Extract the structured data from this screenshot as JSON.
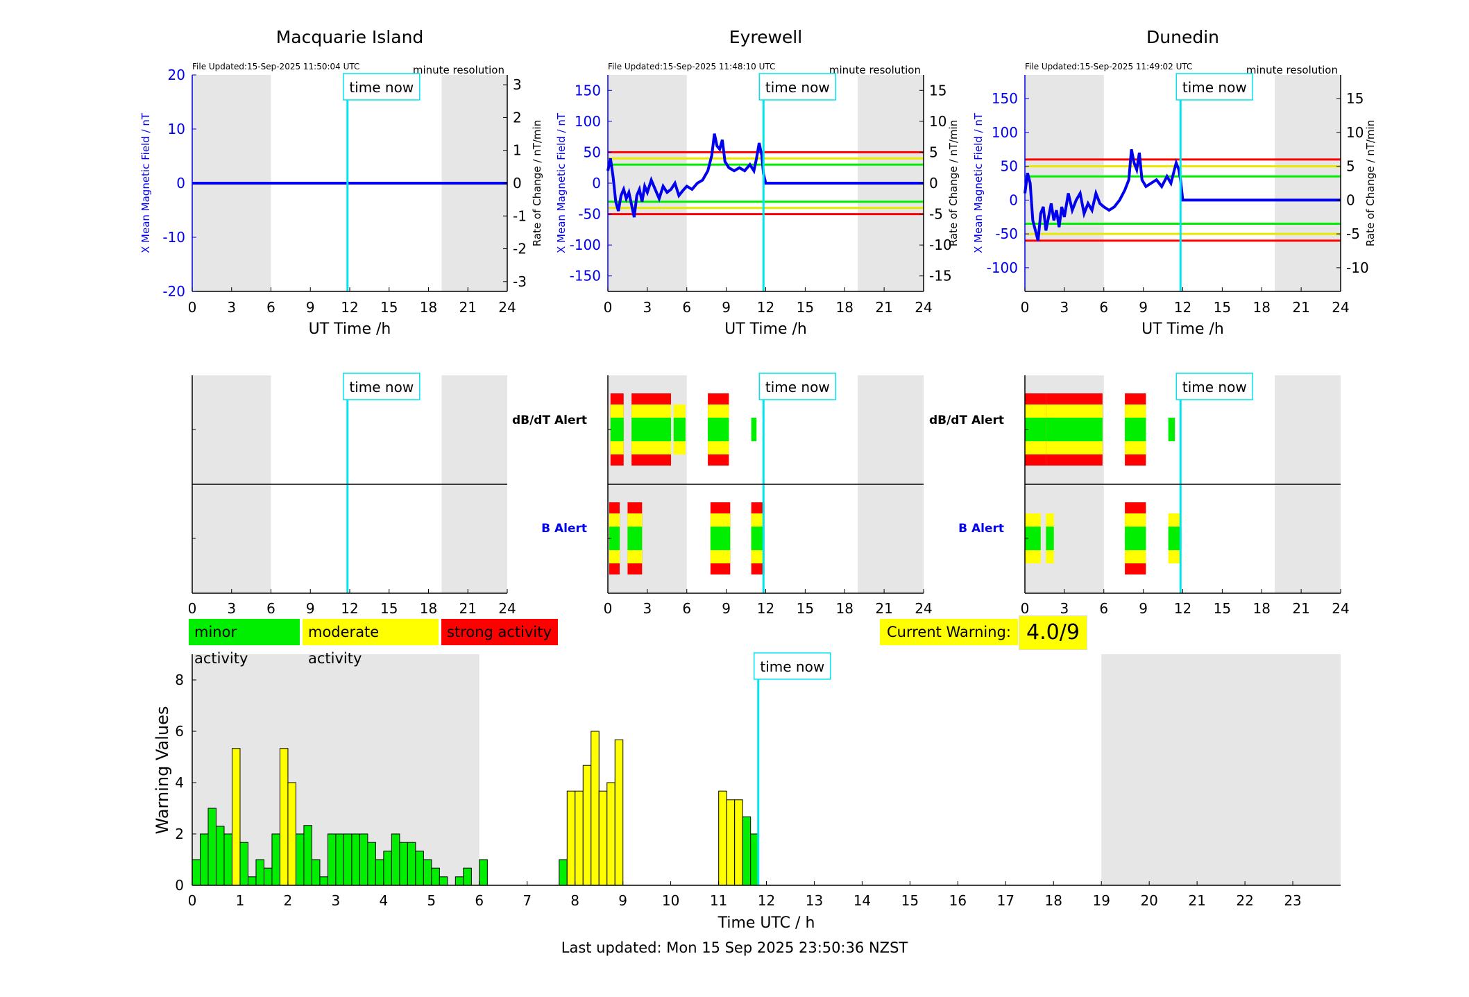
{
  "stations": [
    {
      "title": "Macquarie Island",
      "file_updated": "File Updated:15-Sep-2025 11:50:04 UTC",
      "resolution": "minute resolution",
      "ylabel_left": "X Mean Magnetic Field / nT",
      "ylabel_right": "Rate of Change / nT/min",
      "left_ticks": [
        20,
        10,
        0,
        -10,
        -20
      ],
      "right_ticks": [
        3,
        2,
        1,
        0,
        -1,
        -2,
        -3
      ]
    },
    {
      "title": "Eyrewell",
      "file_updated": "File Updated:15-Sep-2025 11:48:10 UTC",
      "resolution": "minute resolution",
      "ylabel_left": "X Mean Magnetic Field / nT",
      "ylabel_right": "Rate of Change / nT/min",
      "left_ticks": [
        150,
        100,
        50,
        0,
        -50,
        -100,
        -150
      ],
      "right_ticks": [
        15,
        10,
        5,
        0,
        -5,
        -10,
        -15
      ]
    },
    {
      "title": "Dunedin",
      "file_updated": "File Updated:15-Sep-2025 11:49:02 UTC",
      "resolution": "minute resolution",
      "ylabel_left": "X Mean Magnetic Field / nT",
      "ylabel_right": "Rate of Change / nT/min",
      "left_ticks": [
        150,
        100,
        50,
        0,
        -50,
        -100
      ],
      "right_ticks": [
        15,
        10,
        5,
        0,
        -5,
        -10
      ]
    }
  ],
  "time_axis_ticks": [
    "0",
    "3",
    "6",
    "9",
    "12",
    "15",
    "18",
    "21",
    "24"
  ],
  "time_axis_label": "UT Time /h",
  "time_now_label": "time now",
  "alert_labels": {
    "dbdt": "dB/dT Alert",
    "b": "B Alert"
  },
  "legend": {
    "minor": "minor activity",
    "moderate": "moderate activity",
    "strong": "strong activity"
  },
  "current_warning": {
    "label": "Current Warning:",
    "value": "4.0/9"
  },
  "footer": "Last updated: Mon 15 Sep 2025 23:50:36 NZST",
  "colors": {
    "minor": "#00ee00",
    "moderate": "#ffff00",
    "strong": "#ff0000",
    "time_now": "#00e5ee",
    "shade": "#e6e6e6",
    "field": "#0000ee"
  },
  "chart_data": [
    {
      "type": "line",
      "title": "Macquarie Island",
      "xlabel": "UT Time /h",
      "ylabel": "X Mean Magnetic Field / nT",
      "ylabel_right": "Rate of Change / nT/min",
      "xlim": [
        0,
        24
      ],
      "ylim": [
        -20,
        20
      ],
      "ylim_right": [
        -3.3,
        3.3
      ],
      "shaded_hours": [
        [
          0,
          6
        ],
        [
          19,
          24
        ]
      ],
      "time_now": 11.83,
      "series": [
        {
          "x": [
            0,
            24
          ],
          "y": [
            0,
            0
          ]
        }
      ]
    },
    {
      "type": "line",
      "title": "Eyrewell",
      "xlabel": "UT Time /h",
      "ylabel": "X Mean Magnetic Field / nT",
      "ylabel_right": "Rate of Change / nT/min",
      "xlim": [
        0,
        24
      ],
      "ylim": [
        -175,
        175
      ],
      "ylim_right": [
        -17.5,
        17.5
      ],
      "shaded_hours": [
        [
          0,
          6
        ],
        [
          19,
          24
        ]
      ],
      "time_now": 11.83,
      "thresholds": {
        "red": 50,
        "yellow": 40,
        "green": 30,
        "green_low": -30,
        "yellow_low": -40,
        "red_low": -50
      },
      "series": [
        {
          "x": [
            0,
            0.2,
            0.4,
            0.6,
            0.8,
            1.0,
            1.2,
            1.4,
            1.6,
            1.8,
            2.0,
            2.2,
            2.4,
            2.6,
            2.8,
            3.0,
            3.3,
            3.6,
            3.9,
            4.2,
            4.5,
            4.8,
            5.1,
            5.4,
            5.7,
            6.0,
            6.4,
            6.8,
            7.2,
            7.6,
            7.9,
            8.1,
            8.3,
            8.5,
            8.7,
            8.9,
            9.2,
            9.6,
            10.0,
            10.4,
            10.8,
            11.1,
            11.3,
            11.5,
            11.7,
            11.83,
            12.0,
            24
          ],
          "y": [
            20,
            40,
            10,
            -30,
            -45,
            -20,
            -10,
            -25,
            -15,
            -35,
            -55,
            -20,
            -10,
            -30,
            -5,
            -15,
            5,
            -10,
            -25,
            -5,
            -15,
            -10,
            0,
            -20,
            -12,
            -5,
            -10,
            0,
            5,
            20,
            45,
            80,
            60,
            55,
            70,
            35,
            25,
            20,
            25,
            20,
            30,
            20,
            40,
            65,
            45,
            15,
            0,
            0
          ]
        }
      ]
    },
    {
      "type": "line",
      "title": "Dunedin",
      "xlabel": "UT Time /h",
      "ylabel": "X Mean Magnetic Field / nT",
      "ylabel_right": "Rate of Change / nT/min",
      "xlim": [
        0,
        24
      ],
      "ylim": [
        -135,
        185
      ],
      "ylim_right": [
        -13.5,
        18.5
      ],
      "shaded_hours": [
        [
          0,
          6
        ],
        [
          19,
          24
        ]
      ],
      "time_now": 11.83,
      "thresholds": {
        "red": 60,
        "yellow": 50,
        "green": 35,
        "green_low": -35,
        "yellow_low": -50,
        "red_low": -60
      },
      "series": [
        {
          "x": [
            0,
            0.2,
            0.4,
            0.6,
            0.8,
            1.0,
            1.2,
            1.4,
            1.6,
            1.8,
            2.0,
            2.2,
            2.4,
            2.6,
            2.8,
            3.0,
            3.3,
            3.6,
            3.9,
            4.2,
            4.5,
            4.8,
            5.1,
            5.4,
            5.7,
            6.0,
            6.4,
            6.8,
            7.2,
            7.6,
            7.9,
            8.1,
            8.3,
            8.5,
            8.7,
            8.9,
            9.2,
            9.6,
            10.0,
            10.4,
            10.8,
            11.1,
            11.3,
            11.5,
            11.7,
            11.83,
            12.0,
            24
          ],
          "y": [
            10,
            40,
            25,
            -30,
            -45,
            -60,
            -20,
            -10,
            -45,
            -25,
            -5,
            -30,
            -15,
            -40,
            -10,
            -25,
            10,
            -15,
            0,
            10,
            -20,
            -5,
            -15,
            10,
            -5,
            -10,
            -15,
            -10,
            0,
            15,
            30,
            75,
            55,
            45,
            70,
            30,
            20,
            25,
            30,
            20,
            35,
            25,
            40,
            55,
            45,
            30,
            0,
            0
          ]
        }
      ]
    },
    {
      "type": "bar",
      "title": "Current Warning",
      "xlabel": "Time UTC / h",
      "ylabel": "Warning Values",
      "xlim": [
        0,
        24
      ],
      "ylim": [
        0,
        9
      ],
      "shaded_hours": [
        [
          0,
          6
        ],
        [
          19,
          24
        ]
      ],
      "time_now": 11.83,
      "x_ticks": [
        "0",
        "1",
        "2",
        "3",
        "4",
        "5",
        "6",
        "7",
        "8",
        "9",
        "10",
        "11",
        "12",
        "13",
        "14",
        "15",
        "16",
        "17",
        "18",
        "19",
        "20",
        "21",
        "22",
        "23"
      ],
      "y_ticks": [
        "0",
        "2",
        "4",
        "6",
        "8"
      ],
      "bin_width_h": 0.1667,
      "values": [
        1.0,
        2.0,
        3.0,
        2.3,
        2.0,
        5.33,
        1.67,
        0.33,
        1.0,
        0.67,
        2.0,
        5.33,
        4.0,
        2.0,
        2.33,
        1.0,
        0.33,
        2.0,
        2.0,
        2.0,
        2.0,
        2.0,
        1.67,
        1.0,
        1.33,
        2.0,
        1.67,
        1.67,
        1.33,
        1.0,
        0.67,
        0.33,
        0,
        0.33,
        0.67,
        0,
        1.0,
        0,
        0,
        0,
        0,
        0,
        0,
        0,
        0,
        0,
        1.0,
        3.67,
        3.67,
        4.67,
        6.0,
        3.67,
        4.0,
        5.67,
        0,
        0,
        0,
        0,
        0,
        0,
        0,
        0,
        0,
        0,
        0,
        0,
        3.67,
        3.33,
        3.33,
        2.67,
        2.0
      ],
      "levels": [
        "minor",
        "minor",
        "minor",
        "minor",
        "minor",
        "moderate",
        "minor",
        "minor",
        "minor",
        "minor",
        "minor",
        "moderate",
        "moderate",
        "minor",
        "minor",
        "minor",
        "minor",
        "minor",
        "minor",
        "minor",
        "minor",
        "minor",
        "minor",
        "minor",
        "minor",
        "minor",
        "minor",
        "minor",
        "minor",
        "minor",
        "minor",
        "minor",
        "minor",
        "minor",
        "minor",
        "minor",
        "minor",
        "minor",
        "minor",
        "minor",
        "minor",
        "minor",
        "minor",
        "minor",
        "minor",
        "minor",
        "minor",
        "moderate",
        "moderate",
        "moderate",
        "moderate",
        "moderate",
        "moderate",
        "moderate",
        "minor",
        "minor",
        "minor",
        "minor",
        "minor",
        "minor",
        "minor",
        "minor",
        "minor",
        "minor",
        "minor",
        "minor",
        "moderate",
        "moderate",
        "moderate",
        "minor",
        "minor"
      ]
    }
  ],
  "alerts": {
    "Eyrewell": {
      "dbdt": [
        [
          0.2,
          1.2,
          "strong"
        ],
        [
          1.8,
          4.8,
          "strong"
        ],
        [
          5.0,
          5.9,
          "moderate"
        ],
        [
          7.6,
          9.2,
          "strong"
        ],
        [
          10.9,
          11.3,
          "minor"
        ]
      ],
      "b": [
        [
          0.1,
          0.9,
          "strong"
        ],
        [
          1.5,
          2.6,
          "strong"
        ],
        [
          7.8,
          9.3,
          "strong"
        ],
        [
          10.9,
          11.9,
          "strong"
        ]
      ]
    },
    "Dunedin": {
      "dbdt": [
        [
          0.0,
          1.6,
          "strong"
        ],
        [
          1.6,
          5.9,
          "strong"
        ],
        [
          7.6,
          9.2,
          "strong"
        ],
        [
          10.9,
          11.4,
          "minor"
        ]
      ],
      "b": [
        [
          0.0,
          1.2,
          "moderate"
        ],
        [
          1.6,
          2.2,
          "moderate"
        ],
        [
          7.6,
          9.2,
          "strong"
        ],
        [
          10.9,
          11.9,
          "moderate"
        ]
      ]
    },
    "Macquarie Island": {
      "dbdt": [],
      "b": []
    }
  }
}
